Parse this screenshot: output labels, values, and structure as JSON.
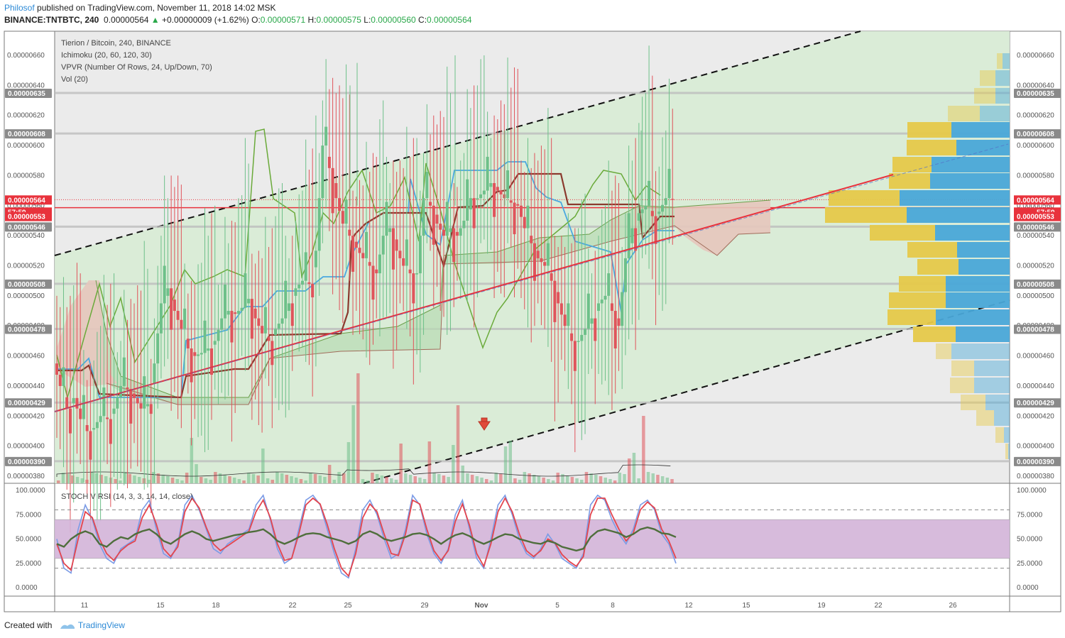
{
  "header": {
    "author": "Philosof",
    "published": "published on TradingView.com, November 11, 2018 14:02 MSK",
    "symbol": "BINANCE:TNTBTC, 240",
    "last": "0.00000564",
    "change": "+0.00000009 (+1.62%)",
    "o_label": "O:",
    "o": "0.00000571",
    "h_label": "H:",
    "h": "0.00000575",
    "l_label": "L:",
    "l": "0.00000560",
    "c_label": "C:",
    "c": "0.00000564"
  },
  "legend": {
    "title": "Tierion / Bitcoin, 240, BINANCE",
    "ichimoku": "Ichimoku (20, 60, 120, 30)",
    "vpvr": "VPVR (Number Of Rows, 24, Up/Down, 70)",
    "vol": "Vol (20)",
    "stoch": "STOCH V RSI (14, 3, 3, 14, 14, close)"
  },
  "footer": {
    "created": "Created with",
    "brand": "TradingView"
  },
  "colors": {
    "up": "#6dc089",
    "down": "#e0545b",
    "channel": "#d8ecd5",
    "kumo_up": "#b8dbb3",
    "kumo_dn": "#e6c7bd",
    "tenkan": "#4aa8e0",
    "kijun": "#8b3a2e",
    "chikou": "#6aaa3a",
    "trend": "#e8323c",
    "rsi_band": "#d3b4d8",
    "stoch_k": "#7b9be6",
    "stoch_d": "#e4454e",
    "rsi": "#4f6e3c",
    "badge": "#8a8a8a",
    "badge_red": "#e8323c"
  },
  "chart_data": [
    {
      "type": "candlestick",
      "title": "Tierion / Bitcoin, 240, BINANCE",
      "ylim": [
        3.75e-06,
        6.65e-06
      ],
      "y_ticks": [
        "0.00000380",
        "0.00000400",
        "0.00000420",
        "0.00000440",
        "0.00000460",
        "0.00000480",
        "0.00000500",
        "0.00000520",
        "0.00000540",
        "0.00000560",
        "0.00000580",
        "0.00000600",
        "0.00000620",
        "0.00000640",
        "0.00000660"
      ],
      "x_ticks": [
        "11",
        "15",
        "18",
        "22",
        "25",
        "29",
        "Nov",
        "5",
        "8",
        "12",
        "15",
        "19",
        "22",
        "26"
      ],
      "price_levels": [
        "0.00000635",
        "0.00000608",
        "0.00000546",
        "0.00000508",
        "0.00000478",
        "0.00000429",
        "0.00000390"
      ],
      "last_price": "0.00000564",
      "countdown": "57:59",
      "red_level": "0.00000553",
      "price_path": [
        4.55e-06,
        4.4e-06,
        4.25e-06,
        4.32e-06,
        4.18e-06,
        4.1e-06,
        4.12e-06,
        4.2e-06,
        4.18e-06,
        4.25e-06,
        4.4e-06,
        4.38e-06,
        4.32e-06,
        4.25e-06,
        4.28e-06,
        4.55e-06,
        4.95e-06,
        5.05e-06,
        4.9e-06,
        4.78e-06,
        4.65e-06,
        4.6e-06,
        4.62e-06,
        4.65e-06,
        4.7e-06,
        4.85e-06,
        4.9e-06,
        4.88e-06,
        4.92e-06,
        4.98e-06,
        4.85e-06,
        4.75e-06,
        4.7e-06,
        4.78e-06,
        4.85e-06,
        4.95e-06,
        5.05e-06,
        5.1e-06,
        5.08e-06,
        5.3e-06,
        6e-06,
        5.85e-06,
        5.65e-06,
        5.48e-06,
        5.4e-06,
        5.32e-06,
        5.25e-06,
        5.2e-06,
        5.15e-06,
        5.4e-06,
        5.45e-06,
        5.3e-06,
        5.2e-06,
        5.15e-06,
        5.15e-06,
        5.65e-06,
        5.6e-06,
        5.48e-06,
        5.4e-06,
        5.45e-06,
        5.4e-06,
        5.5e-06,
        5.65e-06,
        5.65e-06,
        5.7e-06,
        5.75e-06,
        5.7e-06,
        5.65e-06,
        5.62e-06,
        5.6e-06,
        5.45e-06,
        5.35e-06,
        5.25e-06,
        5.2e-06,
        5.1e-06,
        4.95e-06,
        4.8e-06,
        4.7e-06,
        4.7e-06,
        4.78e-06,
        4.85e-06,
        4.95e-06,
        5e-06,
        4.9e-06,
        4.8e-06,
        5.25e-06,
        5.45e-06,
        5.55e-06,
        5.6e-06,
        5.53e-06,
        5.56e-06,
        5.65e-06,
        5.64e-06
      ]
    },
    {
      "type": "line",
      "title": "STOCH V RSI (14, 3, 3, 14, 14, close)",
      "ylim": [
        0,
        100
      ],
      "y_ticks": [
        "0.0000",
        "25.0000",
        "50.0000",
        "75.0000",
        "100.0000"
      ],
      "bands": [
        20,
        80
      ],
      "fill_band": [
        30,
        70
      ],
      "series": [
        {
          "values": [
            50,
            20,
            15,
            60,
            85,
            70,
            45,
            30,
            25,
            40,
            45,
            50,
            80,
            90,
            60,
            35,
            30,
            45,
            85,
            95,
            80,
            60,
            40,
            35,
            45,
            50,
            55,
            60,
            85,
            95,
            70,
            40,
            25,
            30,
            60,
            90,
            95,
            85,
            60,
            35,
            15,
            10,
            40,
            80,
            90,
            75,
            50,
            30,
            35,
            60,
            95,
            85,
            55,
            35,
            25,
            40,
            75,
            90,
            60,
            30,
            20,
            50,
            85,
            95,
            75,
            50,
            35,
            30,
            40,
            55,
            45,
            30,
            25,
            20,
            35,
            85,
            95,
            90,
            70,
            55,
            45,
            60,
            85,
            90,
            80,
            55,
            45,
            25
          ]
        },
        {
          "values": [
            45,
            25,
            18,
            50,
            78,
            72,
            50,
            35,
            28,
            38,
            44,
            48,
            72,
            85,
            65,
            40,
            32,
            42,
            78,
            92,
            82,
            62,
            45,
            38,
            43,
            48,
            53,
            58,
            78,
            90,
            72,
            45,
            28,
            30,
            55,
            85,
            92,
            86,
            65,
            40,
            20,
            12,
            35,
            72,
            86,
            78,
            55,
            35,
            33,
            55,
            90,
            86,
            60,
            38,
            28,
            38,
            68,
            86,
            64,
            35,
            22,
            45,
            78,
            92,
            78,
            55,
            38,
            32,
            38,
            50,
            46,
            34,
            27,
            22,
            32,
            75,
            92,
            92,
            75,
            60,
            48,
            56,
            80,
            88,
            82,
            60,
            48,
            30
          ]
        },
        {
          "values": [
            45,
            42,
            50,
            55,
            58,
            55,
            45,
            42,
            48,
            52,
            50,
            55,
            58,
            60,
            55,
            48,
            45,
            50,
            55,
            58,
            55,
            50,
            48,
            50,
            52,
            54,
            55,
            57,
            58,
            60,
            55,
            48,
            45,
            48,
            52,
            55,
            56,
            55,
            52,
            50,
            48,
            45,
            48,
            55,
            58,
            55,
            50,
            48,
            50,
            52,
            55,
            56,
            54,
            50,
            45,
            50,
            54,
            56,
            53,
            48,
            45,
            48,
            52,
            55,
            54,
            50,
            48,
            46,
            45,
            48,
            46,
            42,
            40,
            38,
            40,
            52,
            58,
            60,
            58,
            56,
            52,
            55,
            60,
            62,
            60,
            56,
            55,
            52
          ]
        }
      ]
    }
  ]
}
